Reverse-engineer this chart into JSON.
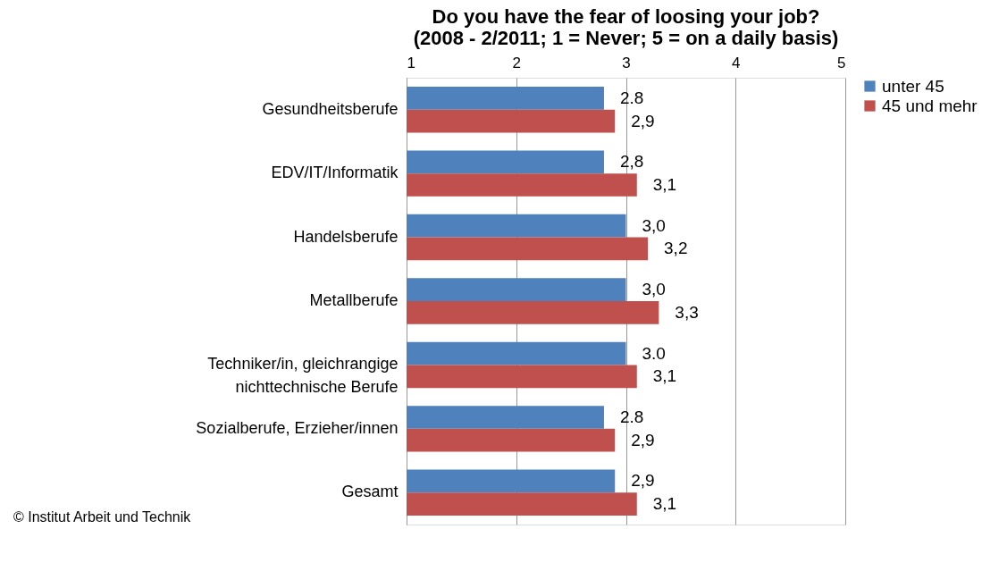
{
  "chart_data": {
    "type": "bar",
    "orientation": "horizontal",
    "title": [
      "Do you have the fear of loosing your job?",
      "(2008 - 2/2011; 1 = Never; 5 = on a daily basis)"
    ],
    "categories": [
      "Gesundheitsberufe",
      "EDV/IT/Informatik",
      "Handelsberufe",
      "Metallberufe",
      "Techniker/in, gleichrangige\nnichttechnische Berufe",
      "Sozialberufe, Erzieher/innen",
      "Gesamt"
    ],
    "series": [
      {
        "name": "unter 45",
        "color": "#4f81bd",
        "values": [
          2.8,
          2.8,
          3.0,
          3.0,
          3.0,
          2.8,
          2.9
        ],
        "value_labels": [
          "2.8",
          "2,8",
          "3,0",
          "3,0",
          "3.0",
          "2.8",
          "2,9"
        ]
      },
      {
        "name": "45 und mehr",
        "color": "#c0504d",
        "values": [
          2.9,
          3.1,
          3.2,
          3.3,
          3.1,
          2.9,
          3.1
        ],
        "value_labels": [
          "2,9",
          "3,1",
          "3,2",
          "3,3",
          "3,1",
          "2,9",
          "3,1"
        ]
      }
    ],
    "xlim": [
      1,
      5
    ],
    "xticks": [
      1,
      2,
      3,
      4,
      5
    ],
    "grid": "x",
    "legend": "right",
    "annotations": [
      "© Institut Arbeit und Technik"
    ]
  }
}
